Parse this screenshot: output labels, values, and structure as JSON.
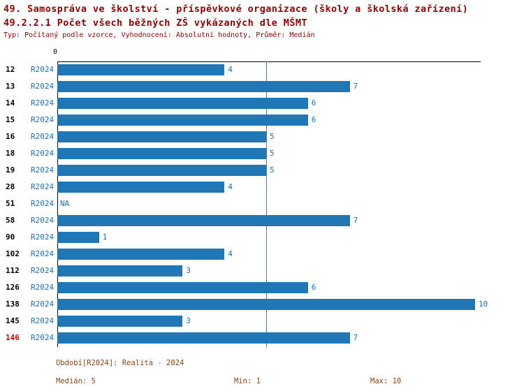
{
  "title": "49. Samospráva ve školství - příspěvkové organizace (školy a školská zařízení)",
  "subtitle": "49.2.2.1 Počet všech běžných ZŠ vykázaných dle MŠMT",
  "meta": "Typ: Počítaný podle vzorce, Vyhodnocení: Absolutní hodnoty, Průměr: Medián",
  "axis": {
    "zero_label": "0"
  },
  "chart_data": {
    "type": "bar",
    "orientation": "horizontal",
    "title": "49.2.2.1 Počet všech běžných ZŠ vykázaných dle MŠMT",
    "categories": [
      "12",
      "13",
      "14",
      "15",
      "16",
      "18",
      "19",
      "28",
      "51",
      "58",
      "90",
      "102",
      "112",
      "126",
      "138",
      "145",
      "146"
    ],
    "series_label": "R2024",
    "values": [
      4,
      7,
      6,
      6,
      5,
      5,
      5,
      4,
      null,
      7,
      1,
      4,
      3,
      6,
      10,
      3,
      7
    ],
    "value_labels": [
      "4",
      "7",
      "6",
      "6",
      "5",
      "5",
      "5",
      "4",
      "NA",
      "7",
      "1",
      "4",
      "3",
      "6",
      "10",
      "3",
      "7"
    ],
    "xlim": [
      0,
      10
    ],
    "median_line_value": 5,
    "highlight_row": "146",
    "bar_color": "#2176b5",
    "legend_position": "none",
    "grid": "off"
  },
  "footer": {
    "period": "Období[R2024]: Realita - 2024",
    "median": "Medián: 5",
    "min": "Min: 1",
    "max": "Max: 10"
  }
}
